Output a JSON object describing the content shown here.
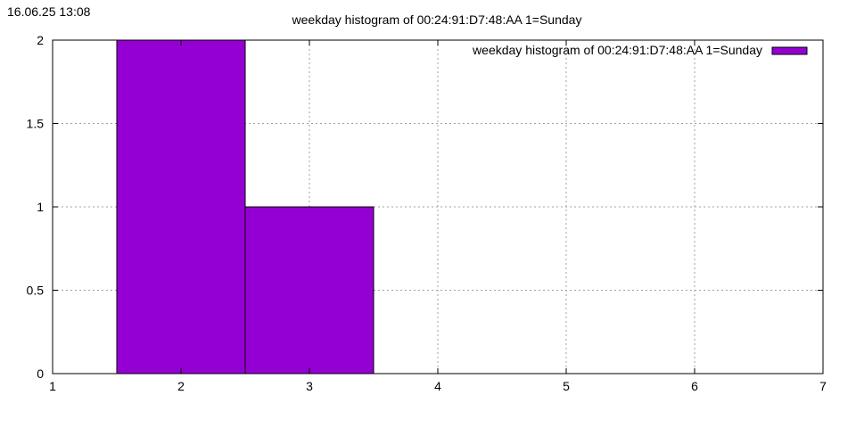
{
  "timestamp": "16.06.25 13:08",
  "colors": {
    "bar_fill": "#9400D3",
    "bar_stroke": "#000000",
    "grid": "#a0a0a0",
    "axis": "#000000",
    "background": "#ffffff"
  },
  "chart_data": {
    "type": "bar",
    "title": "weekday histogram of 00:24:91:D7:48:AA 1=Sunday",
    "xlabel": "",
    "ylabel": "",
    "xlim": [
      1,
      7
    ],
    "ylim": [
      0,
      2
    ],
    "x_ticks": [
      "1",
      "2",
      "3",
      "4",
      "5",
      "6",
      "7"
    ],
    "y_ticks": [
      "0",
      "0.5",
      "1",
      "1.5",
      "2"
    ],
    "grid": true,
    "bar_width": 1,
    "legend_position": "top-right",
    "series": [
      {
        "name": "weekday histogram of 00:24:91:D7:48:AA 1=Sunday",
        "x": [
          2,
          3
        ],
        "values": [
          2,
          1
        ]
      }
    ]
  }
}
